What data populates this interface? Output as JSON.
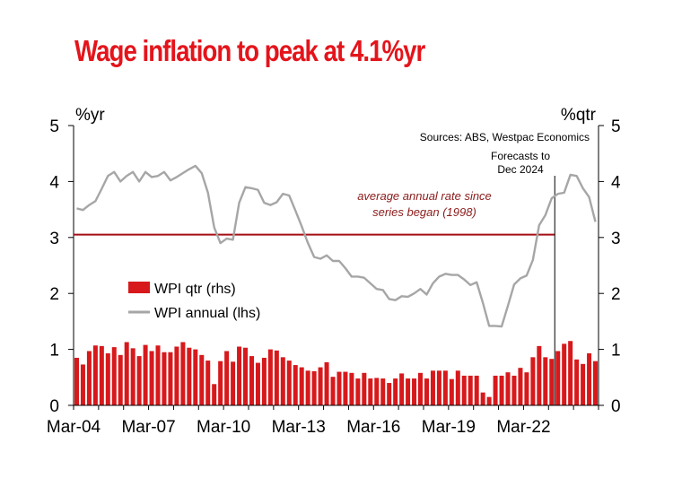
{
  "title": "Wage inflation to peak at 4.1%yr",
  "chart_data": {
    "type": "bar+line",
    "x_tick_labels": [
      "Mar-04",
      "Mar-07",
      "Mar-10",
      "Mar-13",
      "Mar-16",
      "Mar-19",
      "Mar-22"
    ],
    "y_left_label": "%yr",
    "y_right_label": "%qtr",
    "ylim": [
      0,
      5
    ],
    "y_ticks": [
      "0",
      "1",
      "2",
      "3",
      "4",
      "5"
    ],
    "source": "Sources: ABS, Westpac Economics",
    "forecast_label": [
      "Forecasts to",
      "Dec 2024"
    ],
    "forecast_start": "Jun-23",
    "average_label": [
      "average annual rate since",
      "series began (1998)"
    ],
    "average_value": 3.05,
    "legend": [
      {
        "name": "WPI qtr (rhs)",
        "color": "#d7191c",
        "kind": "bar"
      },
      {
        "name": "WPI annual (lhs)",
        "color": "#a6a6a6",
        "kind": "line"
      }
    ],
    "colors": {
      "bars": "#d7191c",
      "line": "#a6a6a6",
      "average": "#a50f15",
      "forecast_marker": "#000000"
    },
    "quarters_start": "Mar-04",
    "series": [
      {
        "name": "WPI qtr (rhs)",
        "axis": "right",
        "values": [
          0.85,
          0.73,
          0.97,
          1.07,
          1.06,
          0.93,
          1.04,
          0.9,
          1.13,
          1.02,
          0.88,
          1.08,
          0.97,
          1.07,
          0.95,
          0.95,
          1.05,
          1.13,
          1.03,
          1.0,
          0.9,
          0.8,
          0.38,
          0.79,
          0.97,
          0.78,
          1.05,
          1.03,
          0.88,
          0.76,
          0.85,
          1.0,
          0.98,
          0.86,
          0.8,
          0.72,
          0.68,
          0.62,
          0.61,
          0.68,
          0.77,
          0.51,
          0.6,
          0.6,
          0.58,
          0.48,
          0.58,
          0.48,
          0.49,
          0.48,
          0.4,
          0.48,
          0.57,
          0.48,
          0.48,
          0.58,
          0.48,
          0.62,
          0.62,
          0.62,
          0.47,
          0.62,
          0.53,
          0.53,
          0.53,
          0.23,
          0.15,
          0.53,
          0.53,
          0.59,
          0.53,
          0.67,
          0.59,
          0.86,
          1.06,
          0.86,
          0.83,
          0.97,
          1.1,
          1.15,
          0.82,
          0.74,
          0.93,
          0.79
        ]
      },
      {
        "name": "WPI annual (lhs)",
        "axis": "left",
        "values": [
          3.52,
          3.49,
          3.58,
          3.65,
          3.87,
          4.1,
          4.17,
          4.0,
          4.1,
          4.17,
          4.0,
          4.17,
          4.08,
          4.1,
          4.17,
          4.02,
          4.08,
          4.15,
          4.22,
          4.28,
          4.15,
          3.8,
          3.18,
          2.9,
          2.98,
          2.96,
          3.62,
          3.9,
          3.88,
          3.85,
          3.62,
          3.58,
          3.63,
          3.78,
          3.75,
          3.48,
          3.2,
          2.9,
          2.65,
          2.62,
          2.68,
          2.58,
          2.58,
          2.45,
          2.3,
          2.3,
          2.28,
          2.18,
          2.08,
          2.06,
          1.9,
          1.88,
          1.95,
          1.94,
          2.0,
          2.08,
          1.98,
          2.18,
          2.3,
          2.35,
          2.33,
          2.33,
          2.25,
          2.15,
          2.2,
          1.83,
          1.42,
          1.42,
          1.41,
          1.78,
          2.16,
          2.27,
          2.32,
          2.6,
          3.22,
          3.4,
          3.7,
          3.78,
          3.8,
          4.12,
          4.1,
          3.88,
          3.72,
          3.28
        ]
      }
    ]
  }
}
